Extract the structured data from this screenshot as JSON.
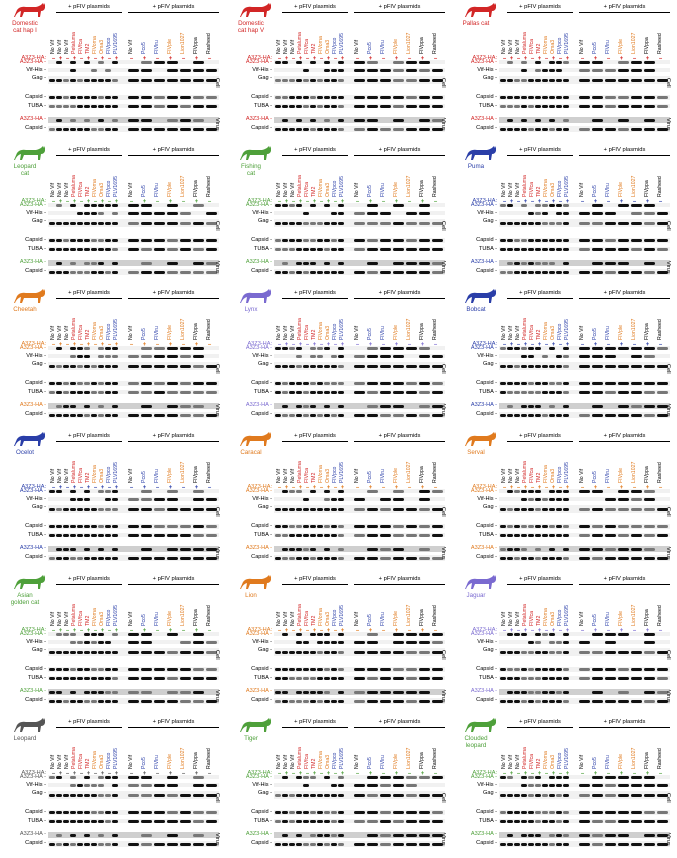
{
  "colors": {
    "red": "#d22626",
    "blue": "#2a3ea8",
    "orange": "#e07a1e",
    "green": "#4ea03a",
    "purple": "#7a6ad0",
    "black": "#000000",
    "grey": "#555555"
  },
  "group_label": "+ pFIV plasmids",
  "row_labels": {
    "a3z3": "A3Z3-HA",
    "vif": "Vif-His",
    "gag": "Gag",
    "capsid": "Capsid",
    "tuba": "TUBA",
    "a3z3_virus": "A3Z3-HA",
    "capsid_virus": "Capsid"
  },
  "side_labels": {
    "cell": "Cell",
    "virus": "Virus"
  },
  "lanes_left": [
    {
      "label": "No Vif",
      "color": "black"
    },
    {
      "label": "No Vif",
      "color": "black"
    },
    {
      "label": "No Vif",
      "color": "black"
    },
    {
      "label": "Petaluma",
      "color": "red"
    },
    {
      "label": "FIVfca",
      "color": "red"
    },
    {
      "label": "TM2",
      "color": "red"
    },
    {
      "label": "FIVoma",
      "color": "orange"
    },
    {
      "label": "Oma3",
      "color": "orange"
    },
    {
      "label": "FIVpco",
      "color": "blue"
    },
    {
      "label": "PLV1695",
      "color": "blue"
    }
  ],
  "lanes_right": [
    {
      "label": "No Vif",
      "color": "black"
    },
    {
      "label": "Pco5",
      "color": "blue"
    },
    {
      "label": "FIVlru",
      "color": "blue"
    },
    {
      "label": "FIVple",
      "color": "orange"
    },
    {
      "label": "Lion1027",
      "color": "orange"
    },
    {
      "label": "FIVppa",
      "color": "black"
    },
    {
      "label": "Rasheed",
      "color": "black"
    }
  ],
  "pm": [
    "–",
    "+",
    "–",
    "+",
    "–",
    "+",
    "–",
    "+",
    "–",
    "+",
    "–",
    "+",
    "–",
    "+",
    "–",
    "+",
    "–"
  ],
  "panels": [
    {
      "species": "Domestic\ncat hap I",
      "color": "red",
      "icon": "domestic-cat-icon"
    },
    {
      "species": "Domestic\ncat hap V",
      "color": "red",
      "icon": "domestic-cat-icon"
    },
    {
      "species": "Pallas cat",
      "color": "red",
      "icon": "pallas-cat-icon"
    },
    {
      "species": "Leopard\ncat",
      "color": "green",
      "icon": "leopard-cat-icon"
    },
    {
      "species": "Fishing\ncat",
      "color": "green",
      "icon": "fishing-cat-icon"
    },
    {
      "species": "Puma",
      "color": "blue",
      "icon": "puma-icon"
    },
    {
      "species": "Cheetah",
      "color": "orange",
      "icon": "cheetah-icon"
    },
    {
      "species": "Lynx",
      "color": "purple",
      "icon": "lynx-icon"
    },
    {
      "species": "Bobcat",
      "color": "blue",
      "icon": "bobcat-icon"
    },
    {
      "species": "Ocelot",
      "color": "blue",
      "icon": "ocelot-icon"
    },
    {
      "species": "Caracal",
      "color": "orange",
      "icon": "caracal-icon"
    },
    {
      "species": "Serval",
      "color": "orange",
      "icon": "serval-icon"
    },
    {
      "species": "Asian\ngolden cat",
      "color": "green",
      "icon": "asian-golden-cat-icon"
    },
    {
      "species": "Lion",
      "color": "orange",
      "icon": "lion-icon"
    },
    {
      "species": "Jaguar",
      "color": "purple",
      "icon": "jaguar-icon"
    },
    {
      "species": "Leopard",
      "color": "grey",
      "icon": "leopard-icon"
    },
    {
      "species": "Tiger",
      "color": "green",
      "icon": "tiger-icon"
    },
    {
      "species": "Clouded\nleopard",
      "color": "green",
      "icon": "clouded-leopard-icon"
    }
  ]
}
